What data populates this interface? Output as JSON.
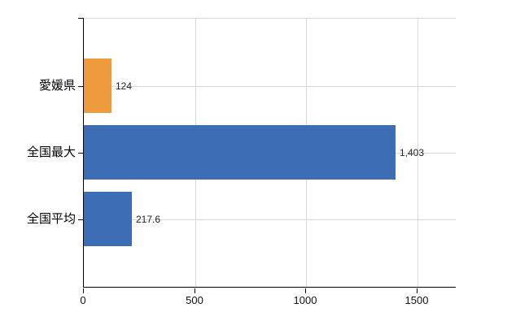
{
  "chart_data": {
    "type": "bar",
    "orientation": "horizontal",
    "title": "",
    "xlabel": "",
    "ylabel": "",
    "categories": [
      "愛媛県",
      "全国最大",
      "全国平均"
    ],
    "values": [
      124,
      1403,
      217.6
    ],
    "value_labels": [
      "124",
      "1,403",
      "217.6"
    ],
    "bar_colors": [
      "#ef9a3c",
      "#3d6eb5",
      "#3d6eb5"
    ],
    "xticks": [
      0,
      500,
      1000,
      1500
    ],
    "xtick_labels": [
      "0",
      "500",
      "1000",
      "1500"
    ],
    "xlim": [
      0,
      1676
    ],
    "grid": true,
    "legend": false,
    "colors": {
      "grid": "#d9d9d9",
      "axis": "#000000",
      "background": "#ffffff",
      "text": "#000000",
      "bar_orange": "#ef9a3c",
      "bar_blue": "#3d6eb5"
    }
  }
}
